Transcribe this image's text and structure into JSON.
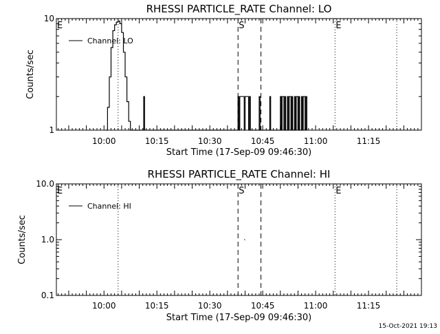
{
  "footer": {
    "timestamp": "15-Oct-2021 19:13"
  },
  "colors": {
    "ink": "#000000",
    "background": "#ffffff"
  },
  "chart_data": [
    {
      "type": "line",
      "title": "RHESSI PARTICLE_RATE Channel: LO",
      "xlabel": "Start Time (17-Sep-09 09:46:30)",
      "ylabel": "Counts/sec",
      "x_unit": "time",
      "xlim": [
        "09:46:30",
        "11:30:00"
      ],
      "ylim": [
        1,
        10
      ],
      "yscale": "log",
      "x_ticks": [
        "10:00",
        "10:15",
        "10:30",
        "10:45",
        "11:00",
        "11:15"
      ],
      "y_ticks": [
        "1",
        "10"
      ],
      "legend": {
        "position": "top-left",
        "label": "Channel: LO"
      },
      "markers": [
        {
          "label": "E",
          "time": "09:46:30",
          "style": "dotted"
        },
        {
          "label": "",
          "time": "10:04:00",
          "style": "dotted"
        },
        {
          "label": "S",
          "time": "10:38:00",
          "style": "dashed"
        },
        {
          "label": "",
          "time": "10:44:30",
          "style": "dashed"
        },
        {
          "label": "E",
          "time": "11:05:30",
          "style": "dotted"
        },
        {
          "label": "",
          "time": "11:23:00",
          "style": "dotted"
        }
      ],
      "series": [
        {
          "name": "Channel: LO",
          "x": [
            "10:00:30",
            "10:01:00",
            "10:01:30",
            "10:02:00",
            "10:02:30",
            "10:03:00",
            "10:03:30",
            "10:04:00",
            "10:04:30",
            "10:05:00",
            "10:05:30",
            "10:06:00",
            "10:06:30",
            "10:07:00",
            "10:07:30",
            "10:08:00",
            "10:08:30",
            "10:09:00",
            "10:10:00",
            "10:11:00",
            "10:11:15",
            "10:11:30",
            "10:12:00",
            "10:37:30",
            "10:38:00",
            "10:38:15",
            "10:38:30",
            "10:39:00",
            "10:39:30",
            "10:39:45",
            "10:40:00",
            "10:40:30",
            "10:41:00",
            "10:41:15",
            "10:41:30",
            "10:42:00",
            "10:43:30",
            "10:44:00",
            "10:44:15",
            "10:44:30",
            "10:46:30",
            "10:47:00",
            "10:47:15",
            "10:47:30",
            "10:49:30",
            "10:50:00",
            "10:50:15",
            "10:50:30",
            "10:51:00",
            "10:51:15",
            "10:51:30",
            "10:52:00",
            "10:52:15",
            "10:52:30",
            "10:53:00",
            "10:53:15",
            "10:53:30",
            "10:54:00",
            "10:54:15",
            "10:54:30",
            "10:55:00",
            "10:55:15",
            "10:55:30",
            "10:56:00",
            "10:56:15",
            "10:56:30",
            "10:57:00",
            "10:57:15",
            "10:57:30"
          ],
          "y": [
            1.0,
            1.6,
            3.0,
            5.5,
            7.8,
            8.8,
            9.3,
            9.5,
            9.0,
            7.5,
            5.0,
            3.0,
            1.8,
            1.2,
            1.0,
            1.0,
            1.0,
            1.0,
            1.0,
            1.0,
            2.0,
            1.0,
            1.0,
            1.0,
            2.0,
            1.0,
            2.0,
            2.0,
            2.0,
            1.0,
            2.0,
            2.0,
            1.0,
            2.0,
            1.0,
            1.0,
            1.0,
            2.0,
            1.0,
            1.0,
            1.0,
            2.0,
            1.0,
            1.0,
            1.0,
            2.0,
            1.0,
            2.0,
            1.0,
            2.0,
            1.0,
            2.0,
            1.0,
            2.0,
            1.0,
            2.0,
            1.0,
            2.0,
            1.0,
            2.0,
            1.0,
            2.0,
            1.0,
            2.0,
            1.0,
            2.0,
            1.0,
            2.0,
            1.0
          ]
        }
      ]
    },
    {
      "type": "line",
      "title": "RHESSI PARTICLE_RATE Channel: HI",
      "xlabel": "Start Time (17-Sep-09 09:46:30)",
      "ylabel": "Counts/sec",
      "x_unit": "time",
      "xlim": [
        "09:46:30",
        "11:30:00"
      ],
      "ylim": [
        0.1,
        10
      ],
      "yscale": "log",
      "x_ticks": [
        "10:00",
        "10:15",
        "10:30",
        "10:45",
        "11:00",
        "11:15"
      ],
      "y_ticks": [
        "0.1",
        "1.0",
        "10.0"
      ],
      "legend": {
        "position": "top-left",
        "label": "Channel: HI"
      },
      "markers": [
        {
          "label": "E",
          "time": "09:46:30",
          "style": "dotted"
        },
        {
          "label": "",
          "time": "10:04:00",
          "style": "dotted"
        },
        {
          "label": "S",
          "time": "10:38:00",
          "style": "dashed"
        },
        {
          "label": "",
          "time": "10:44:30",
          "style": "dashed"
        },
        {
          "label": "E",
          "time": "11:05:30",
          "style": "dotted"
        },
        {
          "label": "",
          "time": "11:23:00",
          "style": "dotted"
        }
      ],
      "series": [
        {
          "name": "Channel: HI",
          "x": [
            "10:39:45",
            "10:40:00"
          ],
          "y": [
            1.0,
            1.0
          ]
        }
      ]
    }
  ]
}
